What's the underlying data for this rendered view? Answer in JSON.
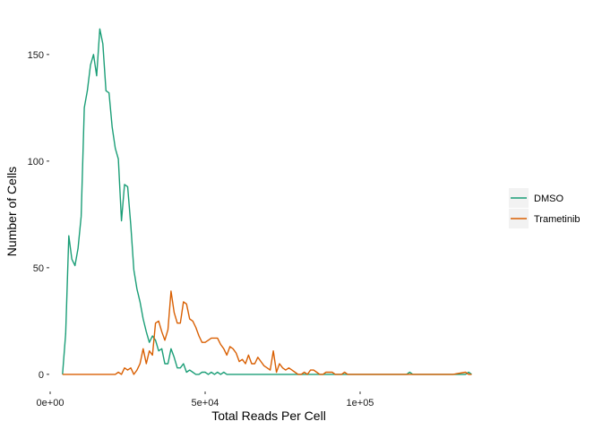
{
  "chart_data": {
    "type": "line",
    "title": "",
    "xlabel": "Total Reads Per Cell",
    "ylabel": "Number of Cells",
    "xlim": [
      0,
      137000
    ],
    "ylim": [
      -3,
      168
    ],
    "x_ticks": [
      0,
      50000,
      100000
    ],
    "x_tick_labels": [
      "0e+00",
      "5e+04",
      "1e+05"
    ],
    "y_ticks": [
      0,
      50,
      100,
      150
    ],
    "y_tick_labels": [
      "0",
      "50",
      "100",
      "150"
    ],
    "grid": false,
    "legend_position": "right",
    "series": [
      {
        "name": "DMSO",
        "color": "#1B9E77",
        "x": [
          4000,
          5000,
          6000,
          7000,
          8000,
          9000,
          10000,
          11000,
          12000,
          13000,
          14000,
          15000,
          16000,
          17000,
          18000,
          19000,
          20000,
          21000,
          22000,
          23000,
          24000,
          25000,
          26000,
          27000,
          28000,
          29000,
          30000,
          31000,
          32000,
          33000,
          34000,
          35000,
          36000,
          37000,
          38000,
          39000,
          40000,
          41000,
          42000,
          43000,
          44000,
          45000,
          46000,
          47000,
          48000,
          49000,
          50000,
          51000,
          52000,
          53000,
          54000,
          55000,
          56000,
          57000,
          58000,
          59000,
          60000,
          61000,
          62000,
          63000,
          64000,
          65000,
          66000,
          67000,
          68000,
          69000,
          70000,
          80000,
          90000,
          100000,
          110000,
          115000,
          116000,
          117000,
          120000,
          130000,
          134000,
          135000,
          136000
        ],
        "y": [
          0,
          19,
          65,
          54,
          51,
          59,
          74,
          125,
          133,
          145,
          150,
          140,
          162,
          155,
          133,
          132,
          116,
          106,
          101,
          72,
          89,
          88,
          70,
          49,
          40,
          34,
          26,
          20,
          15,
          18,
          16,
          11,
          12,
          5,
          5,
          12,
          8,
          3,
          3,
          5,
          1,
          2,
          1,
          0,
          0,
          1,
          1,
          0,
          1,
          0,
          1,
          0,
          1,
          0,
          0,
          0,
          0,
          0,
          0,
          0,
          0,
          0,
          0,
          0,
          0,
          0,
          0,
          0,
          0,
          0,
          0,
          0,
          1,
          0,
          0,
          0,
          0,
          1,
          0
        ]
      },
      {
        "name": "Trametinib",
        "color": "#D95F02",
        "x": [
          4000,
          20000,
          21000,
          22000,
          23000,
          24000,
          25000,
          26000,
          27000,
          28000,
          29000,
          30000,
          31000,
          32000,
          33000,
          34000,
          35000,
          36000,
          37000,
          38000,
          39000,
          40000,
          41000,
          42000,
          43000,
          44000,
          45000,
          46000,
          47000,
          48000,
          49000,
          50000,
          51000,
          52000,
          53000,
          54000,
          55000,
          56000,
          57000,
          58000,
          59000,
          60000,
          61000,
          62000,
          63000,
          64000,
          65000,
          66000,
          67000,
          68000,
          69000,
          70000,
          71000,
          72000,
          73000,
          74000,
          75000,
          76000,
          77000,
          78000,
          79000,
          80000,
          81000,
          82000,
          83000,
          84000,
          85000,
          86000,
          87000,
          88000,
          89000,
          90000,
          91000,
          92000,
          93000,
          94000,
          95000,
          96000,
          97000,
          98000,
          99000,
          100000,
          101000,
          102000,
          103000,
          104000,
          105000,
          106000,
          107000,
          108000,
          109000,
          110000,
          111000,
          112000,
          113000,
          114000,
          115000,
          116000,
          117000,
          118000,
          130000,
          134000,
          135000,
          136000
        ],
        "y": [
          0,
          0,
          0,
          1,
          0,
          3,
          2,
          3,
          0,
          2,
          5,
          12,
          5,
          11,
          9,
          24,
          25,
          20,
          16,
          21,
          39,
          29,
          24,
          24,
          34,
          33,
          26,
          25,
          22,
          18,
          15,
          15,
          16,
          17,
          17,
          17,
          14,
          12,
          9,
          13,
          12,
          10,
          6,
          7,
          5,
          9,
          5,
          5,
          8,
          6,
          4,
          3,
          2,
          11,
          1,
          5,
          3,
          2,
          3,
          2,
          1,
          0,
          0,
          1,
          0,
          2,
          2,
          1,
          0,
          0,
          1,
          1,
          1,
          0,
          0,
          0,
          1,
          0,
          0,
          0,
          0,
          0,
          0,
          0,
          0,
          0,
          0,
          0,
          0,
          0,
          0,
          0,
          0,
          0,
          0,
          0,
          0,
          0,
          0,
          0,
          0,
          1,
          0,
          0
        ]
      }
    ]
  }
}
